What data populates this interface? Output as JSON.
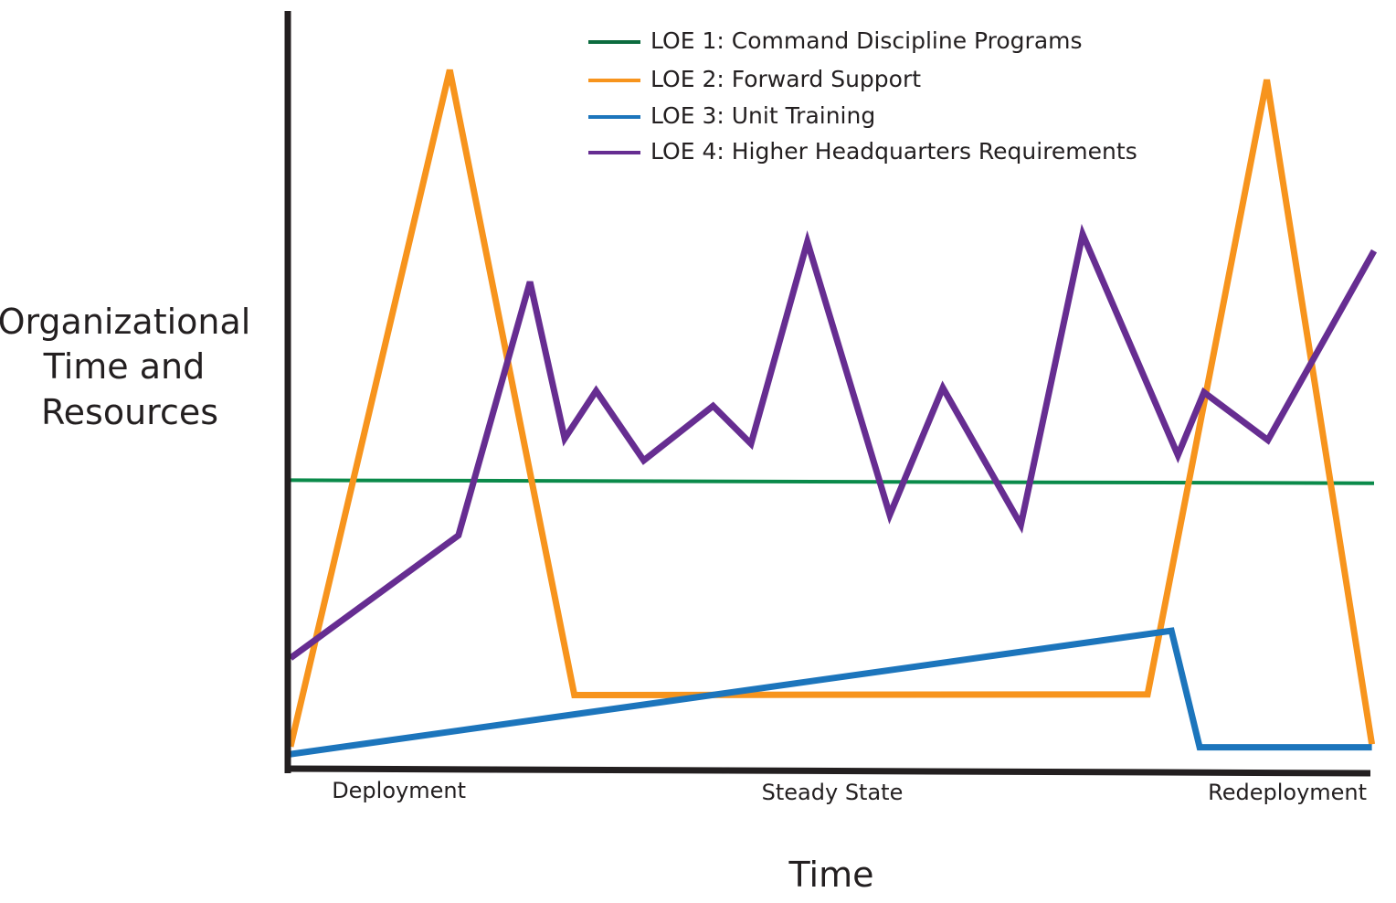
{
  "chart_data": {
    "type": "line",
    "title": "",
    "xlabel": "Time",
    "ylabel": [
      "Organizational",
      "Time and",
      "Resources"
    ],
    "xlim": [
      0,
      100
    ],
    "ylim": [
      0,
      100
    ],
    "grid": false,
    "axis_ticks_numeric": false,
    "legend_position": "top-center",
    "x_tick_labels": [
      {
        "label": "Deployment",
        "x": 10
      },
      {
        "label": "Steady State",
        "x": 50
      },
      {
        "label": "Redeployment",
        "x": 92
      }
    ],
    "series": [
      {
        "name": "LOE 1: Command Discipline Programs",
        "color": "#0a8a4a",
        "legend_color": "#0b6b3e",
        "line_width": 4,
        "points": [
          [
            0,
            38
          ],
          [
            100,
            37.6
          ]
        ]
      },
      {
        "name": "LOE 2: Forward Support",
        "color": "#f7941d",
        "line_width": 7,
        "points": [
          [
            0,
            2.8
          ],
          [
            14.7,
            92.2
          ],
          [
            26.2,
            9.6
          ],
          [
            79.1,
            9.7
          ],
          [
            90.1,
            90.9
          ],
          [
            99.8,
            3.1
          ]
        ]
      },
      {
        "name": "LOE 3: Unit Training",
        "color": "#1c75bc",
        "line_width": 7,
        "points": [
          [
            0,
            1.8
          ],
          [
            81.3,
            18.1
          ],
          [
            83.9,
            2.7
          ],
          [
            99.8,
            2.7
          ]
        ]
      },
      {
        "name": "LOE 4: Higher Headquarters Requirements",
        "color": "#662d91",
        "line_width": 7,
        "points": [
          [
            0,
            14.5
          ],
          [
            15.5,
            30.7
          ],
          [
            22.1,
            64.2
          ],
          [
            25.3,
            43.5
          ],
          [
            28.2,
            49.8
          ],
          [
            32.6,
            40.6
          ],
          [
            39,
            47.8
          ],
          [
            42.5,
            42.8
          ],
          [
            47.7,
            69.5
          ],
          [
            55.3,
            33.4
          ],
          [
            60.2,
            50.2
          ],
          [
            67.4,
            32.1
          ],
          [
            73.1,
            70.5
          ],
          [
            81.9,
            41.3
          ],
          [
            84.3,
            49.6
          ],
          [
            90.2,
            43.3
          ],
          [
            100,
            68.3
          ]
        ]
      }
    ]
  }
}
